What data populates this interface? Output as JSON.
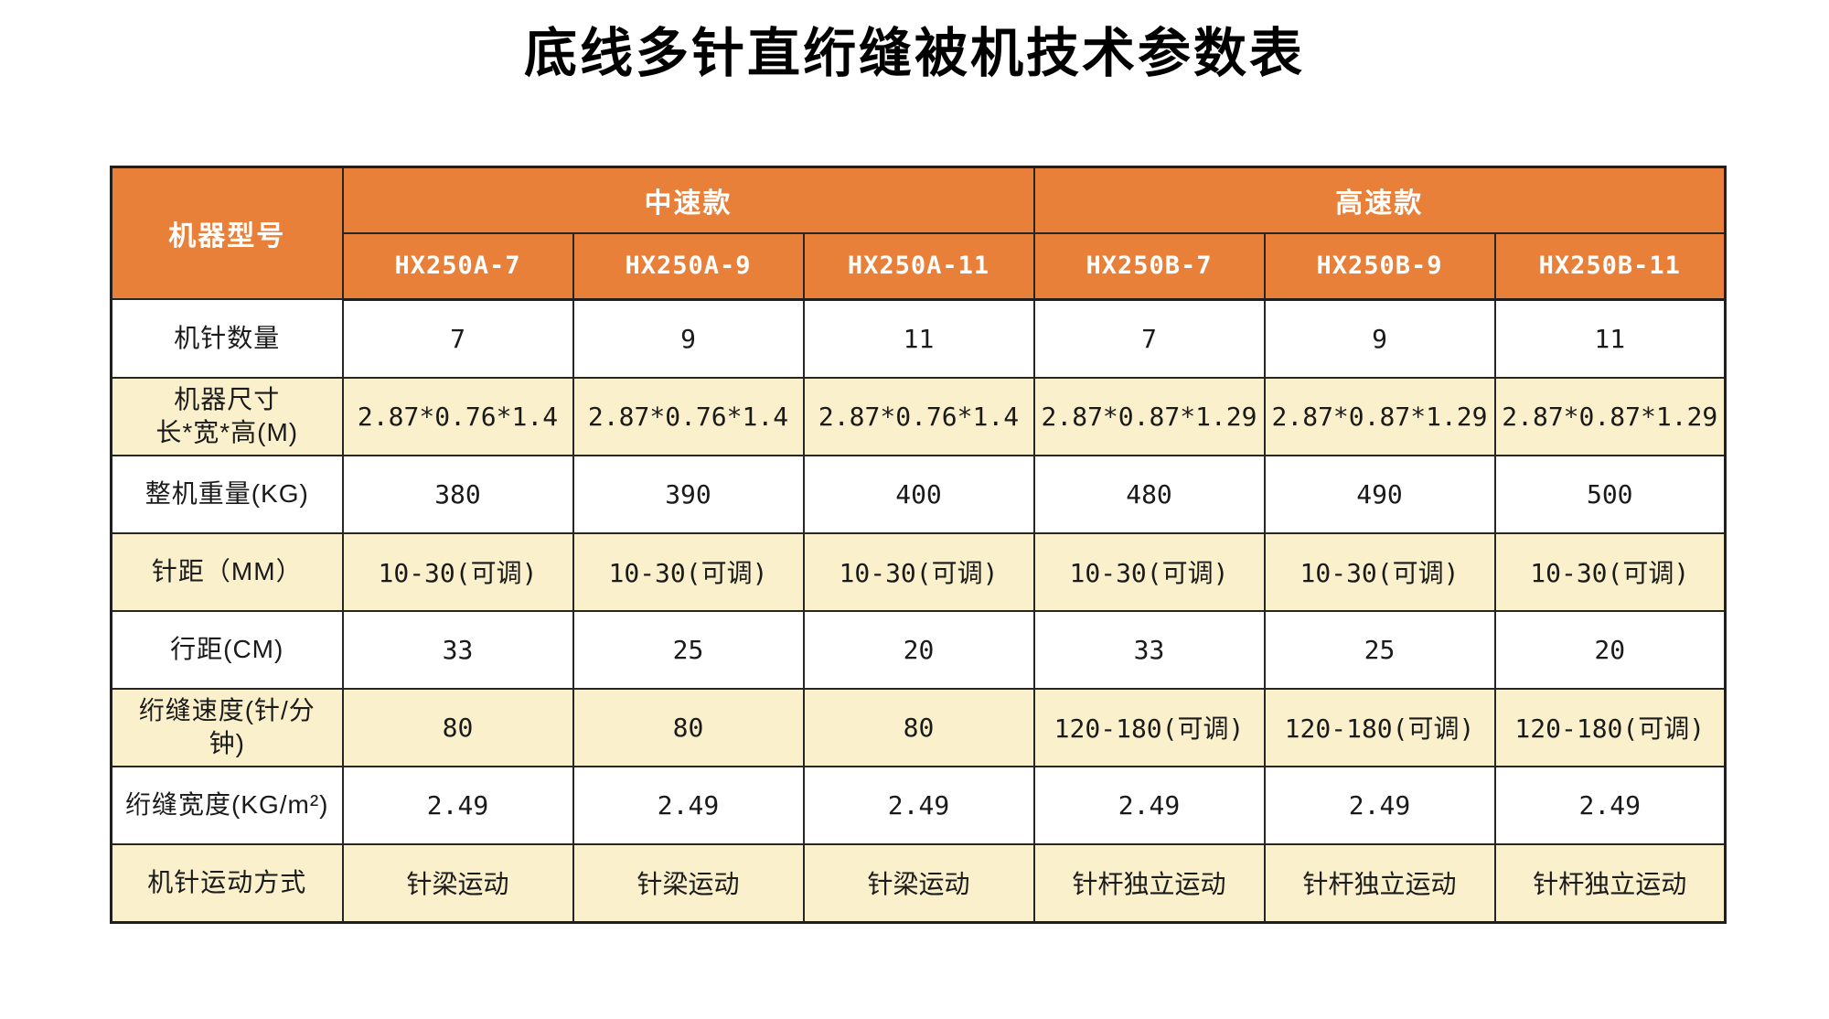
{
  "title": "底线多针直绗缝被机技术参数表",
  "colors": {
    "header_bg": "#E8803A",
    "header_text": "#FFFFFF",
    "stripe_bg": "#FAF0CC",
    "row_bg": "#FFFFFF",
    "border": "#1F1F1F",
    "body_text": "#1A1A1A",
    "title_text": "#000000"
  },
  "chart_data": {
    "type": "table",
    "title": "底线多针直绗缝被机技术参数表",
    "corner_label": "机器型号",
    "groups": [
      "中速款",
      "高速款"
    ],
    "models": [
      "HX250A-7",
      "HX250A-9",
      "HX250A-11",
      "HX250B-7",
      "HX250B-9",
      "HX250B-11"
    ],
    "rows": [
      {
        "label": "机针数量",
        "values": [
          "7",
          "9",
          "11",
          "7",
          "9",
          "11"
        ]
      },
      {
        "label": "机器尺寸\n长*宽*高(M)",
        "values": [
          "2.87*0.76*1.4",
          "2.87*0.76*1.4",
          "2.87*0.76*1.4",
          "2.87*0.87*1.29",
          "2.87*0.87*1.29",
          "2.87*0.87*1.29"
        ]
      },
      {
        "label": "整机重量(KG)",
        "values": [
          "380",
          "390",
          "400",
          "480",
          "490",
          "500"
        ]
      },
      {
        "label": "针距（MM）",
        "values": [
          "10-30(可调)",
          "10-30(可调)",
          "10-30(可调)",
          "10-30(可调)",
          "10-30(可调)",
          "10-30(可调)"
        ]
      },
      {
        "label": "行距(CM)",
        "values": [
          "33",
          "25",
          "20",
          "33",
          "25",
          "20"
        ]
      },
      {
        "label": "绗缝速度(针/分\n钟)",
        "values": [
          "80",
          "80",
          "80",
          "120-180(可调)",
          "120-180(可调)",
          "120-180(可调)"
        ]
      },
      {
        "label": "绗缝宽度(KG/m²)",
        "values": [
          "2.49",
          "2.49",
          "2.49",
          "2.49",
          "2.49",
          "2.49"
        ]
      },
      {
        "label": "机针运动方式",
        "values": [
          "针梁运动",
          "针梁运动",
          "针梁运动",
          "针杆独立运动",
          "针杆独立运动",
          "针杆独立运动"
        ]
      }
    ]
  }
}
